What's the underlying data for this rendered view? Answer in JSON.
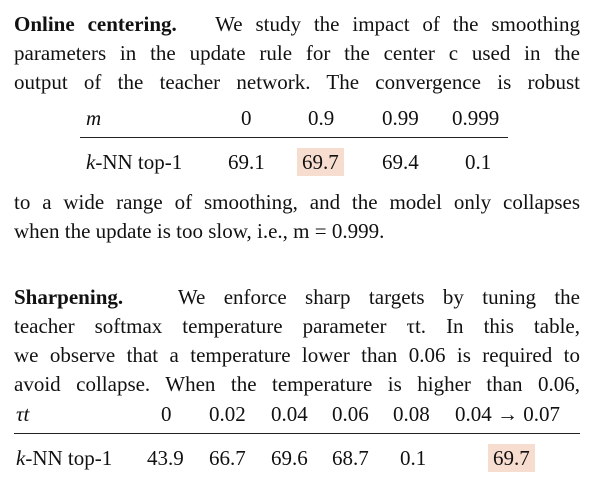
{
  "online": {
    "heading": "Online centering.",
    "line1_rest": "We study the impact of the smoothing",
    "line2": "parameters in the update rule for the center c used in the",
    "line3": "output of the teacher network. The convergence is robust",
    "line4": "to a wide range of smoothing, and the model only collapses",
    "line5": "when the update is too slow, i.e., m = 0.999.",
    "table": {
      "header_label": "m",
      "columns": [
        "0",
        "0.9",
        "0.99",
        "0.999"
      ],
      "row_label": "k-NN top-1",
      "values": [
        "69.1",
        "69.7",
        "69.4",
        "0.1"
      ],
      "highlight_index": 1
    }
  },
  "sharpening": {
    "heading": "Sharpening.",
    "line1_rest": "We enforce sharp targets by tuning the",
    "line2": "teacher softmax temperature parameter τt. In this table,",
    "line3": "we observe that a temperature lower than 0.06 is required to",
    "line4": "avoid collapse. When the temperature is higher than 0.06,",
    "table": {
      "header_label": "τt",
      "columns": [
        "0",
        "0.02",
        "0.04",
        "0.06",
        "0.08",
        "0.04 → 0.07"
      ],
      "row_label": "k-NN top-1",
      "values": [
        "43.9",
        "66.7",
        "69.6",
        "68.7",
        "0.1",
        "69.7"
      ],
      "highlight_index": 5
    }
  },
  "colors": {
    "highlight": "#f7dcd0",
    "text": "#111111"
  }
}
